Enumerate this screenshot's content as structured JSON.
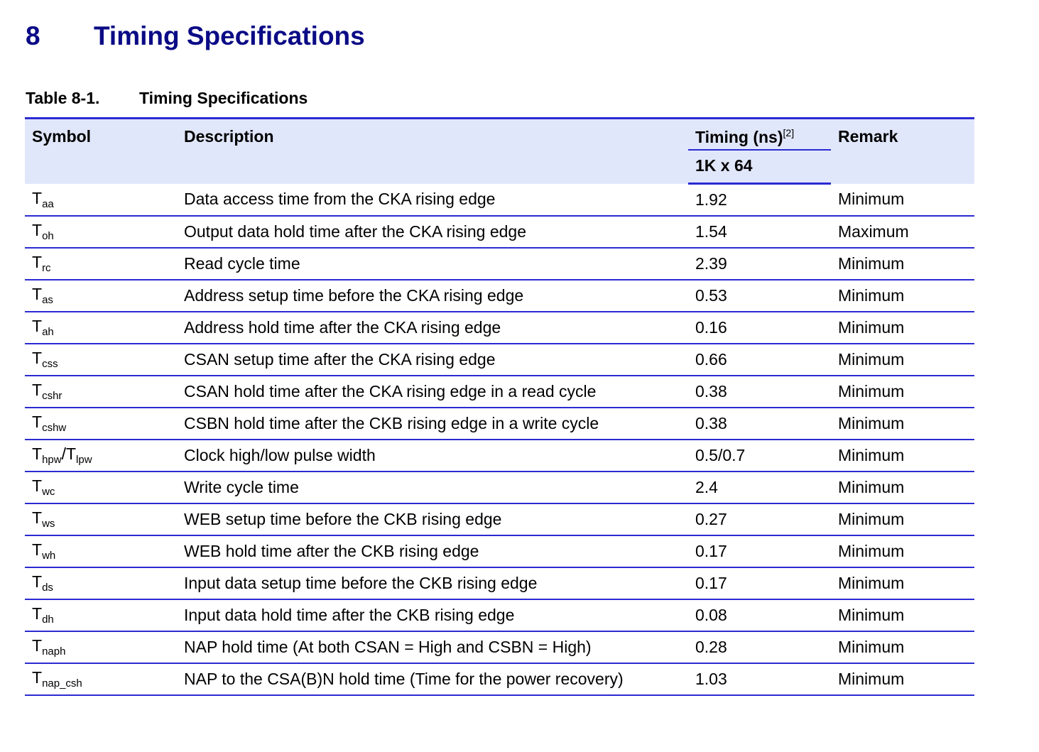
{
  "section": {
    "number": "8",
    "title": "Timing Specifications"
  },
  "caption": {
    "number": "Table 8-1.",
    "title": "Timing Specifications"
  },
  "header": {
    "symbol": "Symbol",
    "description": "Description",
    "timing": "Timing (ns)",
    "timing_footnote": "[2]",
    "timing_sub": "1K x 64",
    "remark": "Remark"
  },
  "rows": [
    {
      "symbol": "T",
      "sub": "aa",
      "description": "Data access time from the CKA rising edge",
      "timing": "1.92",
      "remark": "Minimum"
    },
    {
      "symbol": "T",
      "sub": "oh",
      "description": "Output data hold time after the CKA rising edge",
      "timing": "1.54",
      "remark": "Maximum"
    },
    {
      "symbol": "T",
      "sub": "rc",
      "description": "Read cycle time",
      "timing": "2.39",
      "remark": "Minimum"
    },
    {
      "symbol": "T",
      "sub": "as",
      "description": "Address setup time before the CKA rising edge",
      "timing": "0.53",
      "remark": "Minimum"
    },
    {
      "symbol": "T",
      "sub": "ah",
      "description": "Address hold time after the CKA rising edge",
      "timing": "0.16",
      "remark": "Minimum"
    },
    {
      "symbol": "T",
      "sub": "css",
      "description": "CSAN setup time after the CKA rising edge",
      "timing": "0.66",
      "remark": "Minimum"
    },
    {
      "symbol": "T",
      "sub": "cshr",
      "description": "CSAN hold time after the CKA rising edge in a read cycle",
      "timing": "0.38",
      "remark": "Minimum"
    },
    {
      "symbol": "T",
      "sub": "cshw",
      "description": "CSBN hold time after the CKB rising edge in a write cycle",
      "timing": "0.38",
      "remark": "Minimum"
    },
    {
      "symbol": "T",
      "sub": "hpw",
      "symbol2": "/T",
      "sub2": "lpw",
      "description": "Clock high/low pulse width",
      "timing": "0.5/0.7",
      "remark": "Minimum"
    },
    {
      "symbol": "T",
      "sub": "wc",
      "description": "Write cycle time",
      "timing": "2.4",
      "remark": "Minimum"
    },
    {
      "symbol": "T",
      "sub": "ws",
      "description": "WEB setup time before the CKB rising edge",
      "timing": "0.27",
      "remark": "Minimum"
    },
    {
      "symbol": "T",
      "sub": "wh",
      "description": "WEB hold time after the CKB rising edge",
      "timing": "0.17",
      "remark": "Minimum"
    },
    {
      "symbol": "T",
      "sub": "ds",
      "description": "Input data setup time before the CKB rising edge",
      "timing": "0.17",
      "remark": "Minimum"
    },
    {
      "symbol": "T",
      "sub": "dh",
      "description": "Input data hold time after the CKB rising edge",
      "timing": "0.08",
      "remark": "Minimum"
    },
    {
      "symbol": "T",
      "sub": "naph",
      "description": "NAP hold time (At both CSAN = High and CSBN = High)",
      "timing": "0.28",
      "remark": "Minimum"
    },
    {
      "symbol": "T",
      "sub": "nap_csh",
      "description": "NAP to the CSA(B)N hold time (Time for the power recovery)",
      "timing": "1.03",
      "remark": "Minimum"
    }
  ]
}
